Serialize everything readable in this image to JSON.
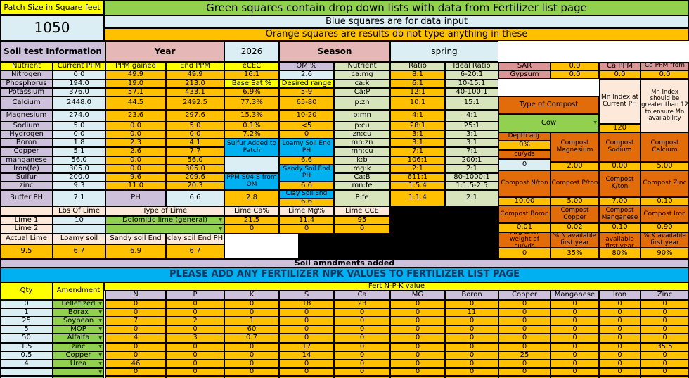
{
  "banners": {
    "patch_size_label": "Patch Size in Square feet",
    "patch_size_value": "1050",
    "green": "Green squares contain drop down lists with data from Fertilizer list page",
    "blue": "Blue squares are for data input",
    "orange": "Orange squares are results do not type anything in these"
  },
  "title_row": {
    "soil_test": "Soil test Information",
    "year_label": "Year",
    "year_value": "2026",
    "season_label": "Season",
    "season_value": "spring"
  },
  "icons": {
    "dropdown": "▼"
  },
  "main_table": {
    "col_headers": [
      "Nutrient",
      "Current PPM",
      "PPM gained",
      "End PPM",
      "eCEC",
      "OM %",
      "Nutrient",
      "Ratio",
      "Ideal Ratio"
    ],
    "rows": [
      {
        "nutrient": "Nitrogen",
        "current": "0.0",
        "gained": "49.9",
        "end": "49.9"
      },
      {
        "nutrient": "Phosphorus",
        "current": "194.0",
        "gained": "19.0",
        "end": "213.0"
      },
      {
        "nutrient": "Potassium",
        "current": "376.0",
        "gained": "57.1",
        "end": "433.1"
      },
      {
        "nutrient": "Calcium",
        "current": "2448.0",
        "gained": "44.5",
        "end": "2492.5"
      },
      {
        "nutrient": "Magnesium",
        "current": "274.0",
        "gained": "23.6",
        "end": "297.6"
      },
      {
        "nutrient": "Sodium",
        "current": "5.0",
        "gained": "0.0",
        "end": "5.0"
      },
      {
        "nutrient": "Hydrogen",
        "current": "0.0",
        "gained": "0.0",
        "end": "0.0"
      },
      {
        "nutrient": "Boron",
        "current": "1.8",
        "gained": "2.3",
        "end": "4.1"
      },
      {
        "nutrient": "Copper",
        "current": "5.1",
        "gained": "2.6",
        "end": "7.7"
      },
      {
        "nutrient": "manganese",
        "current": "56.0",
        "gained": "0.0",
        "end": "56.0"
      },
      {
        "nutrient": "Iron(fe)",
        "current": "305.0",
        "gained": "0.0",
        "end": "305.0"
      },
      {
        "nutrient": "Sulfur",
        "current": "200.0",
        "gained": "9.6",
        "end": "209.6"
      },
      {
        "nutrient": "zinc",
        "current": "9.3",
        "gained": "11.0",
        "end": "20.3"
      }
    ],
    "buffer_row": {
      "label": "Buffer PH",
      "value": "7.1",
      "ph_label": "PH",
      "ph_value": "6.6"
    },
    "ecec_cells": [
      {
        "text": "16.1",
        "style": "result",
        "row": 0
      },
      {
        "text": "Base Sat %",
        "style": "header",
        "row": 1
      },
      {
        "text": "6.9%",
        "style": "result",
        "row": 2
      },
      {
        "text": "77.3%",
        "style": "result",
        "row": 3
      },
      {
        "text": "15.3%",
        "style": "result",
        "row": 4
      },
      {
        "text": "0.1%",
        "style": "result",
        "row": 5
      },
      {
        "text": "7.2%",
        "style": "result",
        "row": 6
      },
      {
        "text": "Sulfur Added to Patch",
        "style": "note",
        "row": 7,
        "span": 2
      },
      {
        "text": "",
        "style": "input",
        "row": 9,
        "span": 2
      },
      {
        "text": "PPM S04-S from OM",
        "style": "note",
        "row": 11,
        "span": 2
      },
      {
        "text": "2.8",
        "style": "result",
        "row": 13
      }
    ],
    "om_cells": [
      {
        "text": "2.6",
        "style": "input",
        "row": 0
      },
      {
        "text": "Desired range",
        "style": "header",
        "row": 1
      },
      {
        "text": "5-9",
        "style": "result",
        "row": 2
      },
      {
        "text": "65-80",
        "style": "result",
        "row": 3
      },
      {
        "text": "10-20",
        "style": "result",
        "row": 4
      },
      {
        "text": "<5",
        "style": "result",
        "row": 5
      },
      {
        "text": "0",
        "style": "result",
        "row": 6
      },
      {
        "text": "Loamy Soil End PH",
        "style": "note",
        "row": 7,
        "span": 2
      },
      {
        "text": "6.6",
        "style": "result",
        "row": 9
      },
      {
        "text": "Sandy Soil End PH",
        "style": "note",
        "row": 10,
        "span": 2
      },
      {
        "text": "6.6",
        "style": "result",
        "row": 12
      },
      {
        "text": "Clay Soil End",
        "style": "note",
        "row": 13,
        "half": "top"
      },
      {
        "text": "6.6",
        "style": "result",
        "row": 13,
        "half": "bottom"
      }
    ],
    "ratio_rows": [
      {
        "name": "ca:mg",
        "ratio": "8:1",
        "ideal": "6-20:1"
      },
      {
        "name": "ca:k",
        "ratio": "6:1",
        "ideal": "10-15:1"
      },
      {
        "name": "Ca:P",
        "ratio": "12:1",
        "ideal": "40-100:1"
      },
      {
        "name": "p:zn",
        "ratio": "10:1",
        "ideal": "15:1"
      },
      {
        "name": "p:mn",
        "ratio": "4:1",
        "ideal": "4:1"
      },
      {
        "name": "p:cu",
        "ratio": "28:1",
        "ideal": "25:1"
      },
      {
        "name": "zn:cu",
        "ratio": "3:1",
        "ideal": "3:1"
      },
      {
        "name": "mn:zn",
        "ratio": "3:1",
        "ideal": "3:1"
      },
      {
        "name": "mn:cu",
        "ratio": "7:1",
        "ideal": "7:1"
      },
      {
        "name": "k:b",
        "ratio": "106:1",
        "ideal": "200:1"
      },
      {
        "name": "mg:k",
        "ratio": "2:1",
        "ideal": "2:1"
      },
      {
        "name": "Ca:B",
        "ratio": "611:1",
        "ideal": "80-1000:1"
      },
      {
        "name": "mn:fe",
        "ratio": "1:5.4",
        "ideal": "1:1.5-2.5"
      },
      {
        "name": "P:fe",
        "ratio": "1:1.4",
        "ideal": "2:1"
      }
    ]
  },
  "right_panel": {
    "sar_label": "SAR",
    "sar_value": "0.0",
    "ca_ppm_label": "Ca PPM",
    "ca_ppm_from_label": "Ca PPM from",
    "gypsum_label": "Gypsum",
    "gypsum_values": [
      "0.0",
      "0.0",
      "0.0"
    ],
    "type_of_compost_label": "Type of Compost",
    "type_of_compost_value": "Cow",
    "mn_index_label": "Mn Index at Current PH",
    "mn_index_value": "120",
    "mn_note": "Mn Index should be greater than 12 to ensure Mn availability",
    "depth_label": "Depth adj.",
    "depth_pct": "0%",
    "cuyds_label": "cu/yds",
    "cuyds_value": "0",
    "compost_grid": [
      {
        "label": "Compost Magnesium",
        "value": "2.00"
      },
      {
        "label": "Compost Sodium",
        "value": "0.00"
      },
      {
        "label": "Compost Calcium",
        "value": "5.00"
      },
      {
        "label": "Compost N/ton",
        "value": "10.00"
      },
      {
        "label": "Compost P/ton",
        "value": "5.00"
      },
      {
        "label": "Compost K/ton",
        "value": "7.00"
      },
      {
        "label": "Compost Zinc",
        "value": "0.10"
      },
      {
        "label": "Compost Boron",
        "value": "0.01"
      },
      {
        "label": "Compost Copper",
        "value": "0.02"
      },
      {
        "label": "Compost Manganese",
        "value": "0.10"
      },
      {
        "label": "Compost Iron",
        "value": "0.90"
      },
      {
        "label": "Avg total weight of cu/yds",
        "value": "0"
      },
      {
        "label": "% N available first year",
        "value": "35%"
      },
      {
        "label": "% P available first year",
        "value": "80%"
      },
      {
        "label": "% K available first year",
        "value": "90%"
      }
    ]
  },
  "lime_section": {
    "col_headers": [
      "Lbs Of Lime",
      "Type of Lime",
      "Lime Ca%",
      "Lime Mg%",
      "Lime CCE"
    ],
    "rows": [
      {
        "label": "Lime 1",
        "lbs": "10",
        "type": "Dolomitic lime (general)",
        "ca": "21.5",
        "mg": "11.4",
        "cce": "95"
      },
      {
        "label": "Lime 2",
        "lbs": "",
        "type": "",
        "ca": "0",
        "mg": "0",
        "cce": "0"
      }
    ],
    "actual_headers": [
      "Actual Lime",
      "Loamy soil",
      "Sandy soil End",
      "clay soil End PH"
    ],
    "actual_values": [
      "9.5",
      "6.7",
      "6.9",
      "6.7"
    ]
  },
  "soil_amendments_label": "Soil amndments added",
  "fert_banner": "PLEASE ADD ANY FERTILIZER NPK VALUES TO FERTILIZER LIST PAGE",
  "fert_table": {
    "qty_header": "Qty",
    "amendment_header": "Amendment",
    "group_header": "Fert N-P-K value",
    "columns": [
      "N",
      "P",
      "K",
      "S",
      "Ca",
      "MG",
      "Boron",
      "Copper",
      "Manganese",
      "Iron",
      "Zinc"
    ],
    "rows": [
      {
        "qty": "0",
        "amendment": "Pelletized",
        "values": [
          "0",
          "0",
          "0",
          "18",
          "23",
          "0",
          "0",
          "0",
          "0",
          "0",
          "0"
        ]
      },
      {
        "qty": "1",
        "amendment": "Borax",
        "values": [
          "0",
          "0",
          "0",
          "0",
          "0",
          "0",
          "11",
          "0",
          "0",
          "0",
          "0"
        ]
      },
      {
        "qty": "25",
        "amendment": "Soybean",
        "values": [
          "7",
          "2",
          "1",
          "0",
          "0",
          "0",
          "0",
          "0",
          "0",
          "0",
          "0"
        ]
      },
      {
        "qty": "5",
        "amendment": "MOP",
        "values": [
          "0",
          "0",
          "60",
          "0",
          "0",
          "0",
          "0",
          "0",
          "0",
          "0",
          "0"
        ]
      },
      {
        "qty": "50",
        "amendment": "Alfalfa",
        "values": [
          "4",
          "3",
          "0.7",
          "0",
          "0",
          "0",
          "0",
          "0",
          "0",
          "0",
          "0"
        ]
      },
      {
        "qty": "1.5",
        "amendment": "zinc",
        "values": [
          "0",
          "0",
          "0",
          "17",
          "0",
          "0",
          "0",
          "0",
          "0",
          "0",
          "35.5"
        ]
      },
      {
        "qty": "0.5",
        "amendment": "Copper",
        "values": [
          "0",
          "0",
          "0",
          "14",
          "0",
          "0",
          "0",
          "25",
          "0",
          "0",
          "0"
        ]
      },
      {
        "qty": "4",
        "amendment": "Urea",
        "values": [
          "46",
          "0",
          "0",
          "0",
          "0",
          "0",
          "0",
          "0",
          "0",
          "0",
          "0"
        ]
      },
      {
        "qty": "",
        "amendment": "",
        "values": [
          "0",
          "0",
          "0",
          "0",
          "0",
          "0",
          "0",
          "0",
          "0",
          "0",
          "0"
        ]
      }
    ]
  }
}
